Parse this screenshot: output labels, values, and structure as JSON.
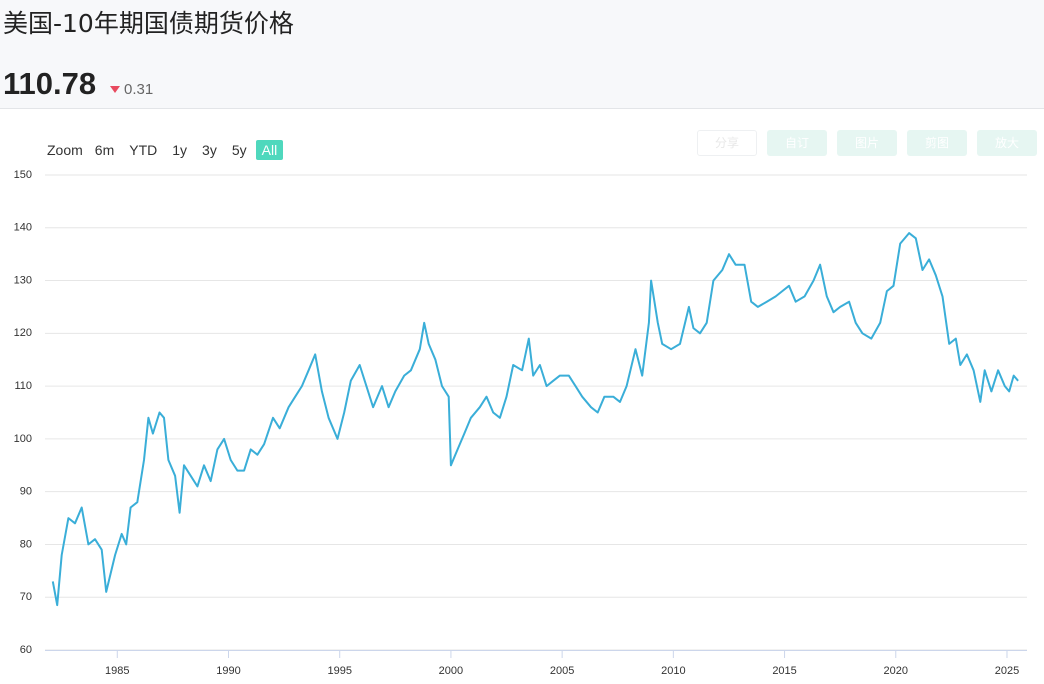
{
  "header": {
    "title": "美国-10年期国债期货价格",
    "price": "110.78",
    "change": "0.31"
  },
  "range_selector": {
    "label": "Zoom",
    "buttons": [
      "6m",
      "YTD",
      "1y",
      "3y",
      "5y",
      "All"
    ],
    "selected": "All"
  },
  "toolbar": [
    "分享",
    "自订",
    "图片",
    "剪图",
    "放大"
  ],
  "chart_data": {
    "type": "line",
    "color": "#3aaed8",
    "grid": true,
    "xlim": [
      1981.75,
      2025.9
    ],
    "xticks": [
      1985,
      1990,
      1995,
      2000,
      2005,
      2010,
      2015,
      2020,
      2025
    ],
    "ylim": [
      60,
      150
    ],
    "yticks": [
      60,
      70,
      80,
      90,
      100,
      110,
      120,
      130,
      140,
      150
    ],
    "x": [
      1982.1,
      1982.3,
      1982.5,
      1982.8,
      1983.1,
      1983.4,
      1983.7,
      1984.0,
      1984.3,
      1984.5,
      1984.9,
      1985.2,
      1985.4,
      1985.6,
      1985.9,
      1986.2,
      1986.4,
      1986.6,
      1986.9,
      1987.1,
      1987.3,
      1987.6,
      1987.8,
      1988.0,
      1988.3,
      1988.6,
      1988.9,
      1989.2,
      1989.5,
      1989.8,
      1990.1,
      1990.4,
      1990.7,
      1991.0,
      1991.3,
      1991.6,
      1992.0,
      1992.3,
      1992.7,
      1993.0,
      1993.3,
      1993.6,
      1993.9,
      1994.2,
      1994.5,
      1994.9,
      1995.2,
      1995.5,
      1995.9,
      1996.2,
      1996.5,
      1996.9,
      1997.2,
      1997.5,
      1997.9,
      1998.2,
      1998.6,
      1998.8,
      1999.0,
      1999.3,
      1999.6,
      1999.9,
      2000.0,
      2000.3,
      2000.6,
      2000.9,
      2001.3,
      2001.6,
      2001.9,
      2002.2,
      2002.5,
      2002.8,
      2003.2,
      2003.5,
      2003.7,
      2004.0,
      2004.3,
      2004.6,
      2004.9,
      2005.3,
      2005.6,
      2005.9,
      2006.3,
      2006.6,
      2006.9,
      2007.3,
      2007.6,
      2007.9,
      2008.3,
      2008.6,
      2008.9,
      2009.0,
      2009.3,
      2009.5,
      2009.9,
      2010.3,
      2010.7,
      2010.9,
      2011.2,
      2011.5,
      2011.8,
      2012.2,
      2012.5,
      2012.8,
      2013.2,
      2013.5,
      2013.8,
      2014.2,
      2014.6,
      2014.9,
      2015.2,
      2015.5,
      2015.9,
      2016.3,
      2016.6,
      2016.9,
      2017.2,
      2017.5,
      2017.9,
      2018.2,
      2018.5,
      2018.9,
      2019.3,
      2019.6,
      2019.9,
      2020.2,
      2020.6,
      2020.9,
      2021.2,
      2021.5,
      2021.8,
      2022.1,
      2022.4,
      2022.7,
      2022.9,
      2023.2,
      2023.5,
      2023.8,
      2024.0,
      2024.3,
      2024.6,
      2024.9,
      2025.1,
      2025.3,
      2025.5
    ],
    "values": [
      73,
      68.5,
      78,
      85,
      84,
      87,
      80,
      81,
      79,
      71,
      78,
      82,
      80,
      87,
      88,
      96,
      104,
      101,
      105,
      104,
      96,
      93,
      86,
      95,
      93,
      91,
      95,
      92,
      98,
      100,
      96,
      94,
      94,
      98,
      97,
      99,
      104,
      102,
      106,
      108,
      110,
      113,
      116,
      109,
      104,
      100,
      105,
      111,
      114,
      110,
      106,
      110,
      106,
      109,
      112,
      113,
      117,
      122,
      118,
      115,
      110,
      108,
      95,
      98,
      101,
      104,
      106,
      108,
      105,
      104,
      108,
      114,
      113,
      119,
      112,
      114,
      110,
      111,
      112,
      112,
      110,
      108,
      106,
      105,
      108,
      108,
      107,
      110,
      117,
      112,
      122,
      130,
      122,
      118,
      117,
      118,
      125,
      121,
      120,
      122,
      130,
      132,
      135,
      133,
      133,
      126,
      125,
      126,
      127,
      128,
      129,
      126,
      127,
      130,
      133,
      127,
      124,
      125,
      126,
      122,
      120,
      119,
      122,
      128,
      129,
      137,
      139,
      138,
      132,
      134,
      131,
      127,
      118,
      119,
      114,
      116,
      113,
      107,
      113,
      109,
      113,
      110,
      109,
      112,
      111
    ]
  }
}
